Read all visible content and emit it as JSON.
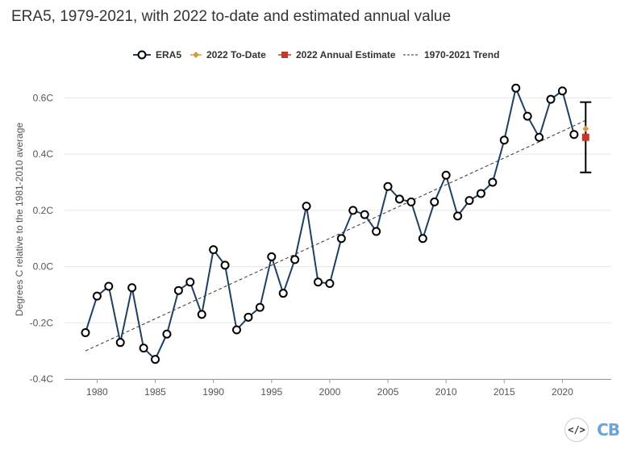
{
  "title": "ERA5, 1979-2021, with 2022 to-date and estimated annual value",
  "legend": {
    "era5": "ERA5",
    "to_date": "2022 To-Date",
    "annual_estimate": "2022 Annual Estimate",
    "trend": "1970-2021 Trend"
  },
  "colors": {
    "line": "#1f3f63",
    "to_date": "#d89a3c",
    "estimate": "#c0392b",
    "error_bar": "#000000",
    "trend": "#333333",
    "grid": "#e6e6e6"
  },
  "logo": {
    "embed_icon": "code-embed-icon",
    "brand": "CB"
  },
  "chart_data": {
    "type": "line",
    "title": "ERA5, 1979-2021, with 2022 to-date and estimated annual value",
    "xlabel": "",
    "ylabel": "Degrees C relative to the 1981-2010 average",
    "xlim": [
      1977.2,
      2024.2
    ],
    "ylim": [
      -0.4,
      0.65
    ],
    "yticks": [
      -0.4,
      -0.2,
      0.0,
      0.2,
      0.4,
      0.6
    ],
    "ytick_labels": [
      "-0.4C",
      "-0.2C",
      "0.0C",
      "0.2C",
      "0.4C",
      "0.6C"
    ],
    "xticks": [
      1980,
      1985,
      1990,
      1995,
      2000,
      2005,
      2010,
      2015,
      2020
    ],
    "xtick_labels": [
      "1980",
      "1985",
      "1990",
      "1995",
      "2000",
      "2005",
      "2010",
      "2015",
      "2020"
    ],
    "grid": true,
    "series": [
      {
        "name": "ERA5",
        "x": [
          1979,
          1980,
          1981,
          1982,
          1983,
          1984,
          1985,
          1986,
          1987,
          1988,
          1989,
          1990,
          1991,
          1992,
          1993,
          1994,
          1995,
          1996,
          1997,
          1998,
          1999,
          2000,
          2001,
          2002,
          2003,
          2004,
          2005,
          2006,
          2007,
          2008,
          2009,
          2010,
          2011,
          2012,
          2013,
          2014,
          2015,
          2016,
          2017,
          2018,
          2019,
          2020,
          2021
        ],
        "values": [
          -0.235,
          -0.105,
          -0.07,
          -0.27,
          -0.075,
          -0.29,
          -0.33,
          -0.24,
          -0.085,
          -0.055,
          -0.17,
          0.06,
          0.005,
          -0.225,
          -0.18,
          -0.145,
          0.035,
          -0.095,
          0.025,
          0.215,
          -0.055,
          -0.06,
          0.1,
          0.2,
          0.185,
          0.125,
          0.285,
          0.24,
          0.23,
          0.1,
          0.23,
          0.325,
          0.18,
          0.235,
          0.26,
          0.3,
          0.45,
          0.635,
          0.535,
          0.46,
          0.595,
          0.625,
          0.47
        ]
      },
      {
        "name": "2022 To-Date",
        "x": [
          2022
        ],
        "values": [
          0.49
        ]
      },
      {
        "name": "2022 Annual Estimate",
        "x": [
          2022
        ],
        "values": [
          0.46
        ],
        "error": [
          0.335,
          0.585
        ]
      },
      {
        "name": "1970-2021 Trend",
        "x": [
          1979,
          2022
        ],
        "values": [
          -0.3,
          0.52
        ]
      }
    ],
    "legend_position": "top-center"
  }
}
